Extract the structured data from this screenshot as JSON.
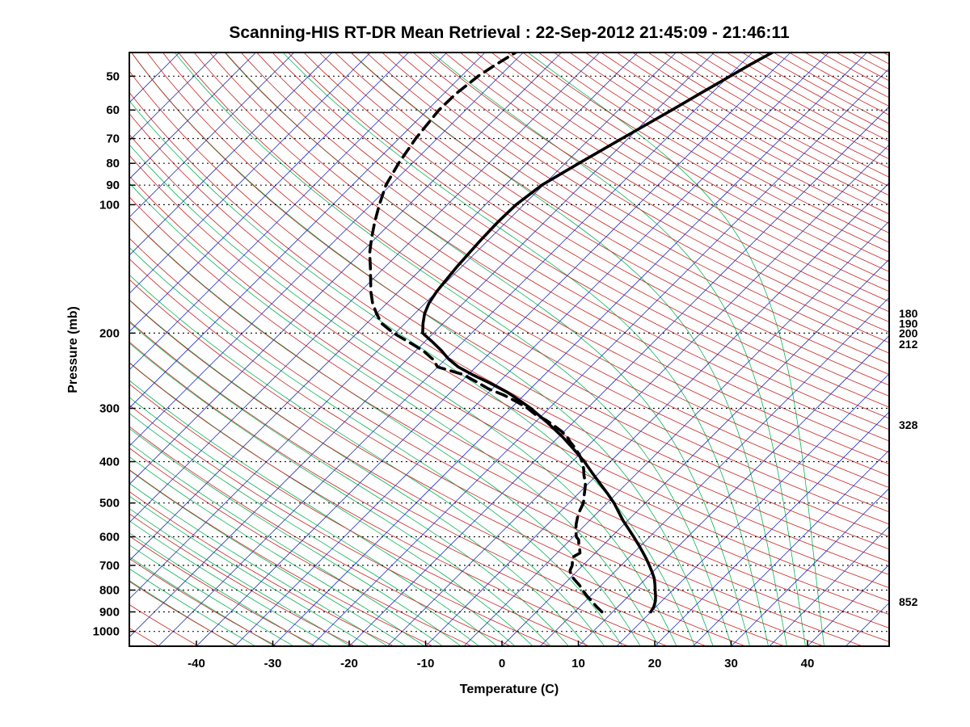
{
  "chart_data": {
    "type": "line",
    "subtype": "skew-t-log-p-sounding",
    "title": "Scanning-HIS RT-DR Mean Retrieval : 22-Sep-2012 21:45:09 - 21:46:11",
    "xlabel": "Temperature (C)",
    "ylabel": "Pressure (mb)",
    "x_ticks": [
      -40,
      -30,
      -20,
      -10,
      0,
      10,
      20,
      30,
      40
    ],
    "pressure_ticks": [
      50,
      60,
      70,
      80,
      90,
      100,
      200,
      300,
      400,
      500,
      600,
      700,
      800,
      900,
      1000
    ],
    "right_pressure_labels": [
      180,
      190,
      200,
      212,
      328,
      852
    ],
    "axes": {
      "pressure_top_mb": 44,
      "pressure_bottom_mb": 1083,
      "temp_axis_min_c": -45,
      "temp_axis_max_c": 45,
      "pressure_scale": "log",
      "skew": "45deg",
      "grid": "dotted-horizontal-at-pressure-ticks"
    },
    "series": [
      {
        "name": "temperature",
        "style": "solid",
        "color": "#000000",
        "points": [
          [
            900,
            15.0
          ],
          [
            875,
            14.7
          ],
          [
            850,
            14.2
          ],
          [
            825,
            13.5
          ],
          [
            800,
            12.7
          ],
          [
            775,
            11.9
          ],
          [
            750,
            11.0
          ],
          [
            725,
            9.9
          ],
          [
            700,
            8.7
          ],
          [
            675,
            7.4
          ],
          [
            650,
            6.0
          ],
          [
            625,
            4.5
          ],
          [
            600,
            2.9
          ],
          [
            575,
            1.2
          ],
          [
            550,
            -0.6
          ],
          [
            525,
            -2.3
          ],
          [
            500,
            -4.1
          ],
          [
            475,
            -6.2
          ],
          [
            450,
            -8.5
          ],
          [
            425,
            -10.9
          ],
          [
            400,
            -13.4
          ],
          [
            375,
            -16.3
          ],
          [
            350,
            -19.5
          ],
          [
            325,
            -23.2
          ],
          [
            300,
            -27.4
          ],
          [
            288,
            -29.8
          ],
          [
            275,
            -32.6
          ],
          [
            262,
            -36.0
          ],
          [
            250,
            -39.5
          ],
          [
            240,
            -42.3
          ],
          [
            230,
            -44.6
          ],
          [
            220,
            -46.6
          ],
          [
            210,
            -48.9
          ],
          [
            200,
            -51.4
          ],
          [
            190,
            -52.6
          ],
          [
            180,
            -53.7
          ],
          [
            170,
            -54.5
          ],
          [
            160,
            -55.0
          ],
          [
            150,
            -55.3
          ],
          [
            140,
            -55.6
          ],
          [
            130,
            -55.8
          ],
          [
            120,
            -56.0
          ],
          [
            110,
            -56.1
          ],
          [
            100,
            -56.0
          ],
          [
            90,
            -55.2
          ],
          [
            80,
            -53.2
          ],
          [
            70,
            -50.8
          ],
          [
            60,
            -48.0
          ],
          [
            55,
            -46.5
          ],
          [
            50,
            -44.8
          ],
          [
            47,
            -43.7
          ],
          [
            44,
            -42.4
          ]
        ]
      },
      {
        "name": "dewpoint",
        "style": "dashed",
        "color": "#000000",
        "points": [
          [
            900,
            8.6
          ],
          [
            875,
            7.2
          ],
          [
            850,
            5.9
          ],
          [
            825,
            4.5
          ],
          [
            800,
            3.2
          ],
          [
            780,
            2.2
          ],
          [
            760,
            1.0
          ],
          [
            740,
            -0.2
          ],
          [
            720,
            -1.0
          ],
          [
            700,
            -1.4
          ],
          [
            685,
            -1.9
          ],
          [
            670,
            -2.4
          ],
          [
            655,
            -2.0
          ],
          [
            640,
            -2.6
          ],
          [
            625,
            -3.3
          ],
          [
            610,
            -3.9
          ],
          [
            600,
            -4.6
          ],
          [
            580,
            -5.5
          ],
          [
            560,
            -6.3
          ],
          [
            540,
            -7.0
          ],
          [
            520,
            -7.6
          ],
          [
            500,
            -8.1
          ],
          [
            480,
            -9.0
          ],
          [
            460,
            -9.9
          ],
          [
            450,
            -10.4
          ],
          [
            430,
            -11.7
          ],
          [
            415,
            -12.6
          ],
          [
            400,
            -13.7
          ],
          [
            385,
            -15.0
          ],
          [
            370,
            -16.6
          ],
          [
            360,
            -17.8
          ],
          [
            350,
            -18.9
          ],
          [
            340,
            -20.3
          ],
          [
            330,
            -22.0
          ],
          [
            320,
            -23.8
          ],
          [
            310,
            -26.0
          ],
          [
            300,
            -27.8
          ],
          [
            290,
            -30.0
          ],
          [
            280,
            -32.5
          ],
          [
            270,
            -35.5
          ],
          [
            260,
            -38.0
          ],
          [
            250,
            -40.7
          ],
          [
            240,
            -45.0
          ],
          [
            230,
            -46.7
          ],
          [
            220,
            -49.0
          ],
          [
            210,
            -52.0
          ],
          [
            200,
            -55.2
          ],
          [
            190,
            -58.0
          ],
          [
            180,
            -60.0
          ],
          [
            170,
            -61.9
          ],
          [
            160,
            -63.6
          ],
          [
            150,
            -65.2
          ],
          [
            140,
            -66.9
          ],
          [
            130,
            -68.8
          ],
          [
            120,
            -70.5
          ],
          [
            110,
            -72.2
          ],
          [
            100,
            -73.9
          ],
          [
            90,
            -75.6
          ],
          [
            80,
            -76.8
          ],
          [
            70,
            -77.8
          ],
          [
            60,
            -78.5
          ],
          [
            55,
            -78.4
          ],
          [
            50,
            -77.8
          ],
          [
            47,
            -77.0
          ],
          [
            44,
            -76.0
          ]
        ]
      }
    ],
    "background_lines": {
      "isotherms": {
        "color": "#2233bb",
        "min": -120,
        "max": 45,
        "step": 5
      },
      "dry_adiabats": {
        "color": "#cc2222",
        "min": -55,
        "max": 330,
        "step": 5
      },
      "moist_adiabats": {
        "color": "#0bb558",
        "min": -40,
        "max": 40,
        "step": 2.5
      },
      "pressure_grid": {
        "color": "#000000",
        "style": "dotted"
      }
    }
  }
}
